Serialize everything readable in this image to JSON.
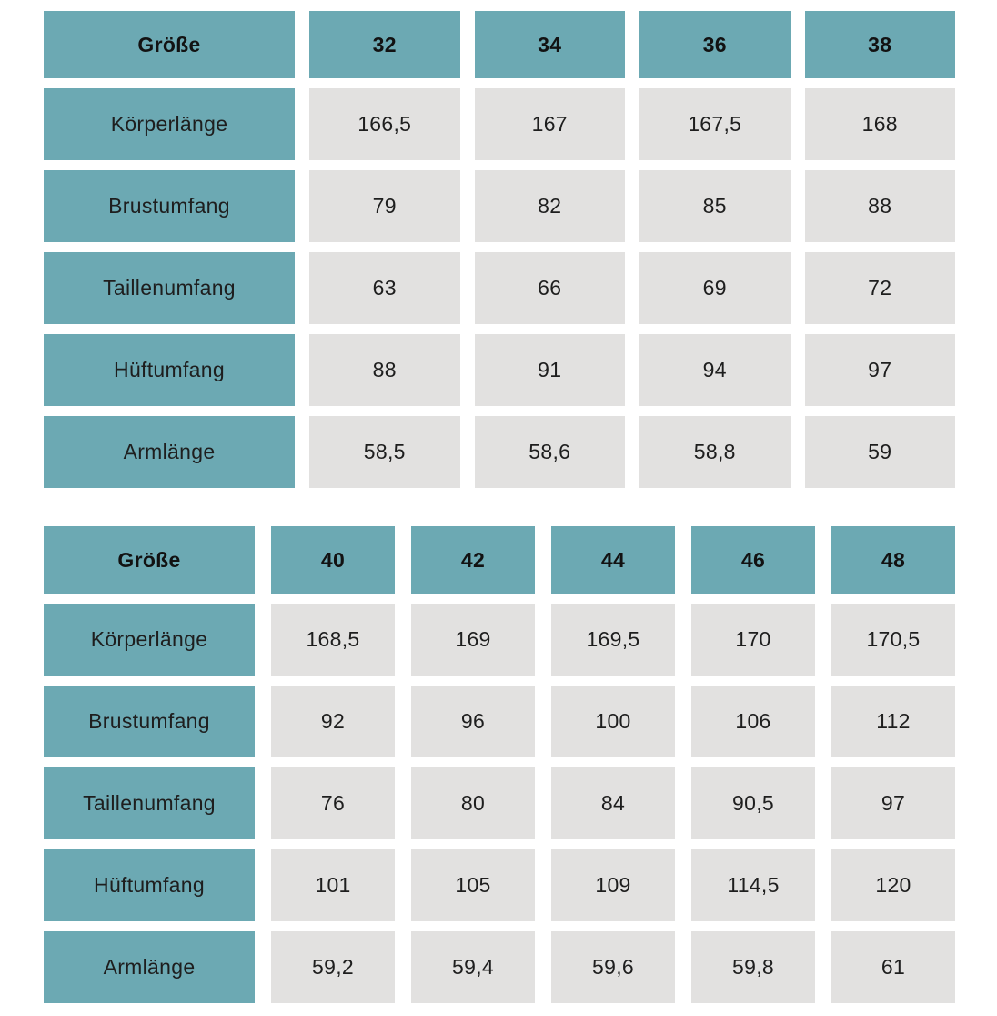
{
  "colors": {
    "header_bg": "#6ca9b3",
    "cell_bg": "#e2e1e0",
    "text": "#1e1e1e",
    "header_text": "#121212",
    "page_bg": "#ffffff"
  },
  "chart_data": [
    {
      "type": "table",
      "title": "",
      "columns": [
        "Größe",
        "32",
        "34",
        "36",
        "38"
      ],
      "rows": [
        [
          "Körperlänge",
          "166,5",
          "167",
          "167,5",
          "168"
        ],
        [
          "Brustumfang",
          "79",
          "82",
          "85",
          "88"
        ],
        [
          "Taillenumfang",
          "63",
          "66",
          "69",
          "72"
        ],
        [
          "Hüftumfang",
          "88",
          "91",
          "94",
          "97"
        ],
        [
          "Armlänge",
          "58,5",
          "58,6",
          "58,8",
          "59"
        ]
      ]
    },
    {
      "type": "table",
      "title": "",
      "columns": [
        "Größe",
        "40",
        "42",
        "44",
        "46",
        "48"
      ],
      "rows": [
        [
          "Körperlänge",
          "168,5",
          "169",
          "169,5",
          "170",
          "170,5"
        ],
        [
          "Brustumfang",
          "92",
          "96",
          "100",
          "106",
          "112"
        ],
        [
          "Taillenumfang",
          "76",
          "80",
          "84",
          "90,5",
          "97"
        ],
        [
          "Hüftumfang",
          "101",
          "105",
          "109",
          "114,5",
          "120"
        ],
        [
          "Armlänge",
          "59,2",
          "59,4",
          "59,6",
          "59,8",
          "61"
        ]
      ]
    }
  ]
}
